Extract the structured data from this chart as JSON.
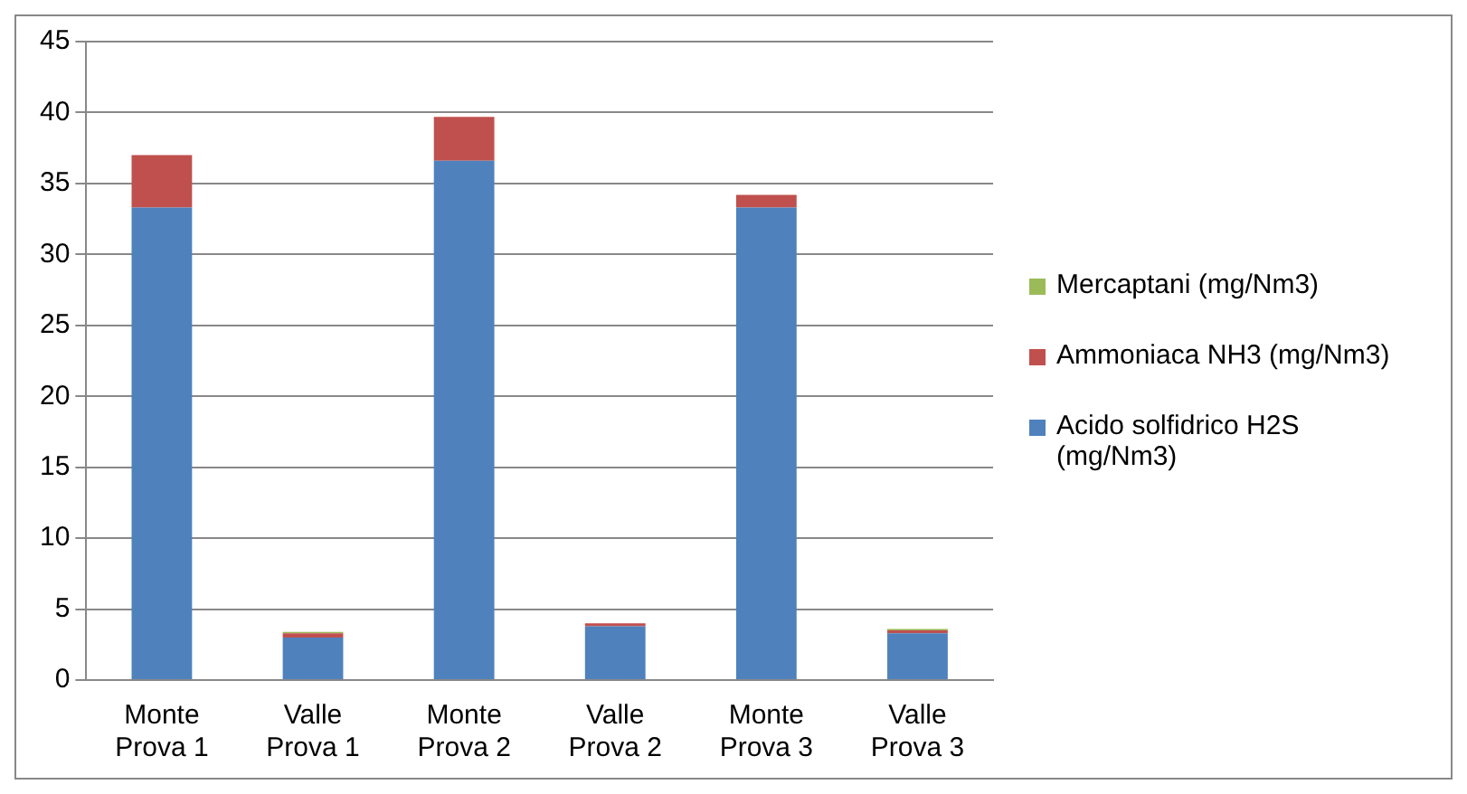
{
  "chart_data": {
    "type": "bar",
    "stacked": true,
    "categories": [
      "Monte Prova 1",
      "Valle Prova 1",
      "Monte Prova 2",
      "Valle Prova 2",
      "Monte Prova 3",
      "Valle Prova 3"
    ],
    "series": [
      {
        "name": "Acido solfidrico H2S (mg/Nm3)",
        "color": "#4f81bd",
        "values": [
          33.3,
          3.0,
          36.6,
          3.8,
          33.3,
          3.3
        ]
      },
      {
        "name": "Ammoniaca NH3 (mg/Nm3)",
        "color": "#c0504d",
        "values": [
          3.7,
          0.3,
          3.1,
          0.2,
          0.9,
          0.2
        ]
      },
      {
        "name": "Mercaptani (mg/Nm3)",
        "color": "#9bbb59",
        "values": [
          0,
          0.1,
          0,
          0,
          0,
          0.1
        ]
      }
    ],
    "ylim": [
      0,
      45
    ],
    "yticks": [
      0,
      5,
      10,
      15,
      20,
      25,
      30,
      35,
      40,
      45
    ],
    "grid": "y",
    "legend": "right"
  }
}
